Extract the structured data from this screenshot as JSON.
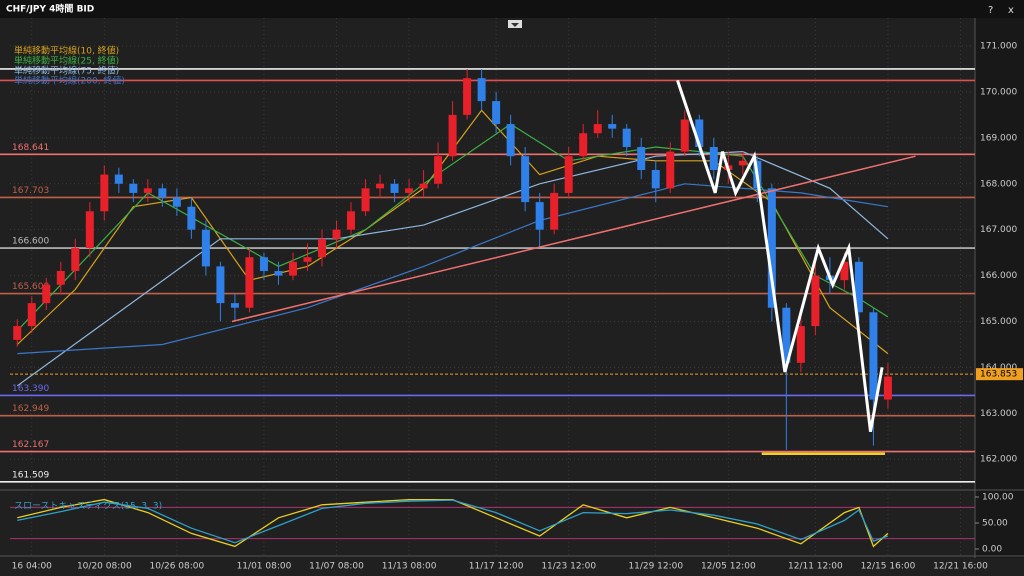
{
  "window": {
    "title": "CHF/JPY 4時間 BID"
  },
  "chart_data": {
    "type": "candlestick",
    "open": [
      164.6,
      164.9,
      165.4,
      165.8,
      166.1,
      166.6,
      167.4,
      168.2,
      168.0,
      167.8,
      167.9,
      167.7,
      167.5,
      167.0,
      166.2,
      165.4,
      165.3,
      166.4,
      166.1,
      166.0,
      166.3,
      166.4,
      166.8,
      167.0,
      167.4,
      167.9,
      168.0,
      167.8,
      167.9,
      168.0,
      168.6,
      169.5,
      170.3,
      169.8,
      169.3,
      168.6,
      167.6,
      167.0,
      167.8,
      168.6,
      169.1,
      169.3,
      169.2,
      168.8,
      168.3,
      167.9,
      168.7,
      169.4,
      168.8,
      168.3,
      168.4,
      168.5,
      167.9,
      165.3,
      164.1,
      164.9,
      166.0,
      165.9,
      166.3,
      165.2,
      163.3
    ],
    "high": [
      165.05,
      165.55,
      165.95,
      166.3,
      166.8,
      167.6,
      168.4,
      168.35,
      168.1,
      168.1,
      168.0,
      167.9,
      167.7,
      167.2,
      166.3,
      165.6,
      166.6,
      166.5,
      166.3,
      166.5,
      166.7,
      167.0,
      167.2,
      167.6,
      168.1,
      168.2,
      168.1,
      168.1,
      168.3,
      168.9,
      169.8,
      170.5,
      170.5,
      170.0,
      169.5,
      168.8,
      167.8,
      168.0,
      168.8,
      169.3,
      169.6,
      169.5,
      169.3,
      169.0,
      168.5,
      168.9,
      169.6,
      169.5,
      169.0,
      168.7,
      168.7,
      168.6,
      168.0,
      165.4,
      165.2,
      166.3,
      166.4,
      166.5,
      166.4,
      165.3,
      164.1
    ],
    "low": [
      164.45,
      164.75,
      165.25,
      165.6,
      165.9,
      166.4,
      167.2,
      167.8,
      167.6,
      167.6,
      167.5,
      167.3,
      166.8,
      166.0,
      165.0,
      165.0,
      165.2,
      165.9,
      165.8,
      165.9,
      166.1,
      166.2,
      166.6,
      166.9,
      167.3,
      167.7,
      167.6,
      167.6,
      167.7,
      167.9,
      168.5,
      169.4,
      169.6,
      169.1,
      168.4,
      167.4,
      166.6,
      166.9,
      167.7,
      168.5,
      169.0,
      169.0,
      168.6,
      168.1,
      167.6,
      167.8,
      168.6,
      168.6,
      168.1,
      168.0,
      168.2,
      167.6,
      165.0,
      162.2,
      163.9,
      164.7,
      165.6,
      165.7,
      165.0,
      162.3,
      163.1
    ],
    "close": [
      164.9,
      165.4,
      165.8,
      166.1,
      166.6,
      167.4,
      168.2,
      168.0,
      167.8,
      167.9,
      167.7,
      167.5,
      167.0,
      166.2,
      165.4,
      165.3,
      166.4,
      166.1,
      166.0,
      166.3,
      166.4,
      166.8,
      167.0,
      167.4,
      167.9,
      168.0,
      167.8,
      167.9,
      168.0,
      168.6,
      169.5,
      170.3,
      169.8,
      169.3,
      168.6,
      167.6,
      167.0,
      167.8,
      168.6,
      169.1,
      169.3,
      169.2,
      168.8,
      168.3,
      167.9,
      168.7,
      169.4,
      168.8,
      168.3,
      168.4,
      168.5,
      167.9,
      165.3,
      164.1,
      164.9,
      166.0,
      165.9,
      166.3,
      165.2,
      163.3,
      163.8
    ],
    "up_color": "#e8202a",
    "down_color": "#2f80e8",
    "xlim": [
      -0.5,
      66
    ],
    "xticks": [
      {
        "value": 1,
        "label": "16 04:00"
      },
      {
        "value": 6,
        "label": "10/20 08:00"
      },
      {
        "value": 11,
        "label": "10/26 08:00"
      },
      {
        "value": 17,
        "label": "11/01 08:00"
      },
      {
        "value": 22,
        "label": "11/07 08:00"
      },
      {
        "value": 27,
        "label": "11/13 08:00"
      },
      {
        "value": 33,
        "label": "11/17 12:00"
      },
      {
        "value": 38,
        "label": "11/23 12:00"
      },
      {
        "value": 44,
        "label": "11/29 12:00"
      },
      {
        "value": 49,
        "label": "12/05 12:00"
      },
      {
        "value": 55,
        "label": "12/11 12:00"
      },
      {
        "value": 60,
        "label": "12/15 16:00"
      },
      {
        "value": 65,
        "label": "12/21 16:00"
      }
    ],
    "ylim": [
      161.33,
      171.61
    ],
    "yticks": [
      {
        "value": 171,
        "label": "171.000"
      },
      {
        "value": 170,
        "label": "170.000"
      },
      {
        "value": 169,
        "label": "169.000"
      },
      {
        "value": 168,
        "label": "168.000"
      },
      {
        "value": 167,
        "label": "167.000"
      },
      {
        "value": 166,
        "label": "166.000"
      },
      {
        "value": 165,
        "label": "165.000"
      },
      {
        "value": 164,
        "label": "164.000"
      },
      {
        "value": 163,
        "label": "163.000"
      },
      {
        "value": 162,
        "label": "162.000"
      }
    ],
    "moving_averages": [
      {
        "name": "単純移動平均線(10, 終値)",
        "color": "#d9a21b",
        "x": [
          0,
          4,
          8,
          12,
          16,
          20,
          24,
          28,
          32,
          36,
          40,
          44,
          48,
          52,
          56,
          60
        ],
        "values": [
          164.5,
          165.7,
          167.5,
          167.7,
          165.9,
          166.2,
          167.0,
          167.9,
          169.6,
          168.2,
          168.6,
          168.5,
          168.5,
          167.6,
          165.3,
          164.3
        ]
      },
      {
        "name": "単純移動平均線(25, 終値)",
        "color": "#3cb043",
        "x": [
          0,
          9,
          18,
          24,
          28,
          34,
          38,
          44,
          50,
          55,
          58,
          60
        ],
        "values": [
          164.8,
          167.8,
          166.2,
          167.0,
          168.0,
          169.3,
          168.5,
          168.8,
          168.6,
          166.0,
          165.5,
          165.1
        ]
      },
      {
        "name": "単純移動平均線(75, 終値)",
        "color": "#8fb8de",
        "x": [
          0,
          14,
          22,
          28,
          36,
          44,
          50,
          56,
          60
        ],
        "values": [
          163.6,
          166.8,
          166.8,
          167.1,
          168.0,
          168.6,
          168.7,
          167.9,
          166.8
        ]
      },
      {
        "name": "単純移動平均線(200, 終値)",
        "color": "#3a78c9",
        "x": [
          0,
          10,
          20,
          28,
          36,
          46,
          54,
          60
        ],
        "values": [
          164.3,
          164.5,
          165.3,
          166.2,
          167.2,
          168.0,
          167.8,
          167.5
        ]
      }
    ],
    "levels": [
      {
        "value": 170.5,
        "color": "#eeeeee"
      },
      {
        "value": 170.25,
        "color": "#e05050"
      },
      {
        "value": 168.641,
        "color": "#f07070"
      },
      {
        "value": 167.703,
        "color": "#c0604a"
      },
      {
        "value": 166.6,
        "label": "166.600",
        "color": "#bbbbbb"
      },
      {
        "value": 165.608,
        "color": "#c0604a"
      },
      {
        "value": 163.39,
        "label": "163.390",
        "color": "#6a6af0"
      },
      {
        "value": 162.949,
        "color": "#c0604a"
      },
      {
        "value": 162.167,
        "color": "#f07070"
      },
      {
        "value": 161.509,
        "color": "#eeeeee"
      }
    ],
    "last_price": 163.853,
    "last_price_color": "#f0a020",
    "trendline": {
      "color": "#f07070",
      "x": [
        14.8,
        61.9
      ],
      "values": [
        165.0,
        168.6
      ]
    },
    "support_line": {
      "color": "#f0d020",
      "x": [
        51.3,
        59.8
      ],
      "values": [
        162.12,
        162.12
      ]
    },
    "zigzag": {
      "color": "#ffffff",
      "x": [
        45.5,
        48.1,
        48.6,
        49.5,
        50.8,
        52.9,
        55.2,
        56.2,
        57.3,
        58.8,
        59.6
      ],
      "values": [
        170.25,
        167.8,
        168.7,
        167.8,
        168.6,
        163.9,
        166.6,
        165.8,
        166.6,
        162.6,
        164.0
      ]
    },
    "stochastic": {
      "title": "スローストキャスティクス(15, 3, 3)",
      "ylim": [
        -5.8,
        113.5
      ],
      "yticks": [
        {
          "value": 100,
          "label": "100.00"
        },
        {
          "value": 50,
          "label": "50.00"
        },
        {
          "value": 0,
          "label": "0.00"
        }
      ],
      "bands": [
        80,
        20
      ],
      "band_color": "#b03070",
      "lines": [
        {
          "color": "#e8d020",
          "x": [
            0,
            3,
            6,
            9,
            12,
            15,
            18,
            21,
            24,
            27,
            30,
            33,
            36,
            39,
            42,
            45,
            48,
            51,
            54,
            57,
            58,
            59,
            60
          ],
          "values": [
            60,
            80,
            95,
            70,
            30,
            5,
            60,
            85,
            90,
            95,
            95,
            60,
            25,
            85,
            60,
            80,
            60,
            40,
            10,
            70,
            80,
            5,
            30
          ]
        },
        {
          "color": "#2fa0c8",
          "x": [
            0,
            3,
            6,
            9,
            12,
            15,
            18,
            21,
            24,
            27,
            30,
            33,
            36,
            39,
            42,
            45,
            48,
            51,
            54,
            57,
            58,
            59,
            60
          ],
          "values": [
            55,
            72,
            90,
            78,
            40,
            12,
            45,
            78,
            88,
            92,
            94,
            70,
            35,
            70,
            68,
            75,
            65,
            48,
            18,
            55,
            75,
            15,
            25
          ]
        }
      ]
    }
  }
}
